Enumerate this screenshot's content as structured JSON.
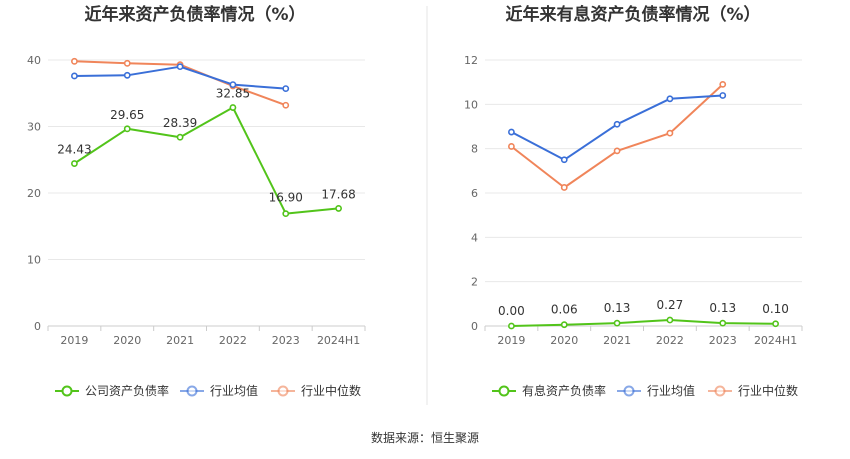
{
  "colors": {
    "company": "#52c41a",
    "industry_avg": "#3a6fd8",
    "industry_median": "#f0855a",
    "grid": "#e8e8e8",
    "axis": "#cccccc",
    "divider": "#e6e6e6"
  },
  "legend_icon": "circle-line-marker-icon",
  "source_text": "数据来源：恒生聚源",
  "chart_data": [
    {
      "type": "line",
      "title": "近年来资产负债率情况（%）",
      "categories": [
        "2019",
        "2020",
        "2021",
        "2022",
        "2023",
        "2024H1"
      ],
      "ylim": [
        0,
        40
      ],
      "yticks": [
        0,
        10,
        20,
        30,
        40
      ],
      "grid": true,
      "legend_position": "bottom",
      "series": [
        {
          "name": "公司资产负债率",
          "color_key": "company",
          "values": [
            24.43,
            29.65,
            28.39,
            32.85,
            16.9,
            17.68
          ],
          "labels": [
            "24.43",
            "29.65",
            "28.39",
            "32.85",
            "16.90",
            "17.68"
          ]
        },
        {
          "name": "行业均值",
          "color_key": "industry_avg",
          "values": [
            37.6,
            37.7,
            39.0,
            36.3,
            35.7,
            null
          ]
        },
        {
          "name": "行业中位数",
          "color_key": "industry_median",
          "values": [
            39.8,
            39.5,
            39.3,
            36.1,
            33.2,
            null
          ]
        }
      ]
    },
    {
      "type": "line",
      "title": "近年来有息资产负债率情况（%）",
      "categories": [
        "2019",
        "2020",
        "2021",
        "2022",
        "2023",
        "2024H1"
      ],
      "ylim": [
        0,
        12
      ],
      "yticks": [
        0,
        2,
        4,
        6,
        8,
        10,
        12
      ],
      "grid": true,
      "legend_position": "bottom",
      "series": [
        {
          "name": "有息资产负债率",
          "color_key": "company",
          "values": [
            0.0,
            0.06,
            0.13,
            0.27,
            0.13,
            0.1
          ],
          "labels": [
            "0.00",
            "0.06",
            "0.13",
            "0.27",
            "0.13",
            "0.10"
          ]
        },
        {
          "name": "行业均值",
          "color_key": "industry_avg",
          "values": [
            8.75,
            7.5,
            9.1,
            10.25,
            10.4,
            null
          ]
        },
        {
          "name": "行业中位数",
          "color_key": "industry_median",
          "values": [
            8.1,
            6.25,
            7.9,
            8.7,
            10.9,
            null
          ]
        }
      ]
    }
  ]
}
